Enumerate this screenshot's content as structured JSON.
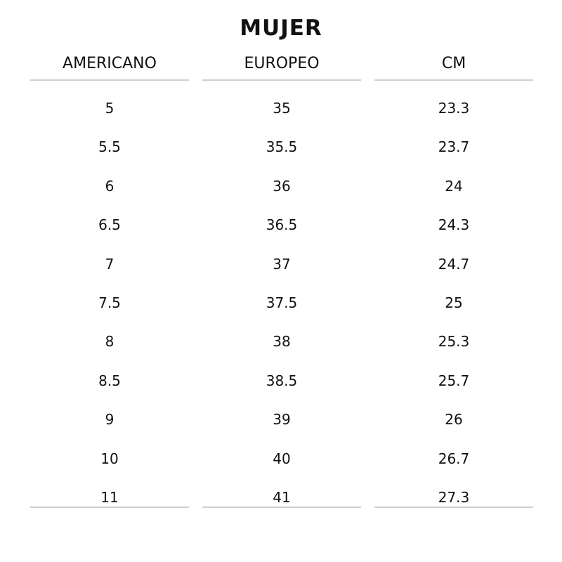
{
  "title": "MUJER",
  "columns": [
    "AMERICANO",
    "EUROPEO",
    "CM"
  ],
  "rows": [
    [
      "5",
      "35",
      "23.3"
    ],
    [
      "5.5",
      "35.5",
      "23.7"
    ],
    [
      "6",
      "36",
      "24"
    ],
    [
      "6.5",
      "36.5",
      "24.3"
    ],
    [
      "7",
      "37",
      "24.7"
    ],
    [
      "7.5",
      "37.5",
      "25"
    ],
    [
      "8",
      "38",
      "25.3"
    ],
    [
      "8.5",
      "38.5",
      "25.7"
    ],
    [
      "9",
      "39",
      "26"
    ],
    [
      "10",
      "40",
      "26.7"
    ],
    [
      "11",
      "41",
      "27.3"
    ]
  ],
  "colors": {
    "text": "#111111",
    "divider": "#cfcfcf"
  }
}
